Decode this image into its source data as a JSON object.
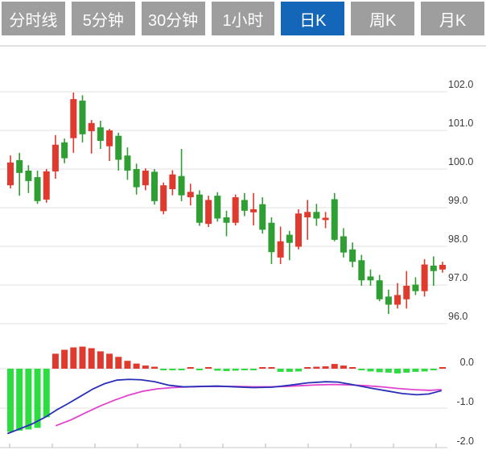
{
  "toolbar": {
    "tabs": [
      {
        "label": "分时线",
        "active": false
      },
      {
        "label": "5分钟",
        "active": false
      },
      {
        "label": "30分钟",
        "active": false
      },
      {
        "label": "1小时",
        "active": false
      },
      {
        "label": "日K",
        "active": true
      },
      {
        "label": "周K",
        "active": false
      },
      {
        "label": "月K",
        "active": false
      }
    ]
  },
  "colors": {
    "tab_bg": "#9e9e9e",
    "tab_active_bg": "#1467b8",
    "tab_text": "#ffffff",
    "up_red": "#e0392e",
    "down_green": "#2f9e33",
    "hist_green": "#2edc41",
    "dif_blue": "#2a2fb8",
    "dea_magenta": "#e243ce",
    "grid": "#e2e2e2",
    "border": "#cfcfcf",
    "axis_label": "#3c3c3c"
  },
  "chart_data": {
    "type": "candlestick_with_macd",
    "title": "Daily K-line (日K) with MACD",
    "price_axis": {
      "ticks": [
        102.0,
        101.0,
        100.0,
        99.0,
        98.0,
        97.0,
        96.0
      ],
      "tick_labels": [
        "102.0",
        "101.0",
        "100.0",
        "99.0",
        "98.0",
        "97.0",
        "96.0"
      ],
      "range": [
        95.8,
        102.2
      ]
    },
    "candles": [
      {
        "o": 99.58,
        "h": 100.35,
        "l": 99.5,
        "c": 100.17
      },
      {
        "o": 100.23,
        "h": 100.42,
        "l": 99.31,
        "c": 99.9
      },
      {
        "o": 99.96,
        "h": 100.1,
        "l": 99.38,
        "c": 99.69
      },
      {
        "o": 99.79,
        "h": 99.96,
        "l": 99.1,
        "c": 99.17
      },
      {
        "o": 99.21,
        "h": 100.0,
        "l": 99.13,
        "c": 99.94
      },
      {
        "o": 99.94,
        "h": 100.88,
        "l": 99.75,
        "c": 100.63
      },
      {
        "o": 100.69,
        "h": 100.79,
        "l": 100.15,
        "c": 100.28
      },
      {
        "o": 100.8,
        "h": 101.98,
        "l": 100.42,
        "c": 101.81
      },
      {
        "o": 101.77,
        "h": 101.91,
        "l": 100.69,
        "c": 100.9
      },
      {
        "o": 100.98,
        "h": 101.27,
        "l": 100.4,
        "c": 101.19
      },
      {
        "o": 101.08,
        "h": 101.25,
        "l": 100.52,
        "c": 100.73
      },
      {
        "o": 100.59,
        "h": 101.04,
        "l": 100.21,
        "c": 101.0
      },
      {
        "o": 100.86,
        "h": 100.94,
        "l": 99.96,
        "c": 100.24
      },
      {
        "o": 100.35,
        "h": 100.56,
        "l": 99.72,
        "c": 99.96
      },
      {
        "o": 100.0,
        "h": 100.14,
        "l": 99.34,
        "c": 99.53
      },
      {
        "o": 99.58,
        "h": 100.02,
        "l": 99.45,
        "c": 99.96
      },
      {
        "o": 99.93,
        "h": 100.0,
        "l": 99.08,
        "c": 99.17
      },
      {
        "o": 98.91,
        "h": 99.65,
        "l": 98.83,
        "c": 99.58
      },
      {
        "o": 99.48,
        "h": 99.97,
        "l": 99.32,
        "c": 99.86
      },
      {
        "o": 99.82,
        "h": 100.52,
        "l": 99.17,
        "c": 99.32
      },
      {
        "o": 99.27,
        "h": 99.62,
        "l": 99.06,
        "c": 99.41
      },
      {
        "o": 99.34,
        "h": 99.45,
        "l": 98.53,
        "c": 98.61
      },
      {
        "o": 98.58,
        "h": 99.31,
        "l": 98.5,
        "c": 99.2
      },
      {
        "o": 99.31,
        "h": 99.4,
        "l": 98.64,
        "c": 98.72
      },
      {
        "o": 98.75,
        "h": 98.92,
        "l": 98.26,
        "c": 98.61
      },
      {
        "o": 98.61,
        "h": 99.34,
        "l": 98.54,
        "c": 99.27
      },
      {
        "o": 99.2,
        "h": 99.38,
        "l": 98.78,
        "c": 98.92
      },
      {
        "o": 98.88,
        "h": 99.38,
        "l": 98.54,
        "c": 98.96
      },
      {
        "o": 99.09,
        "h": 99.27,
        "l": 98.33,
        "c": 98.43
      },
      {
        "o": 98.61,
        "h": 98.75,
        "l": 97.54,
        "c": 97.85
      },
      {
        "o": 97.71,
        "h": 98.51,
        "l": 97.54,
        "c": 98.13
      },
      {
        "o": 98.3,
        "h": 98.4,
        "l": 97.64,
        "c": 98.09
      },
      {
        "o": 97.99,
        "h": 98.96,
        "l": 97.92,
        "c": 98.85
      },
      {
        "o": 98.75,
        "h": 99.2,
        "l": 98.17,
        "c": 98.89
      },
      {
        "o": 98.89,
        "h": 99.1,
        "l": 98.53,
        "c": 98.72
      },
      {
        "o": 98.68,
        "h": 98.89,
        "l": 98.47,
        "c": 98.74
      },
      {
        "o": 99.22,
        "h": 99.38,
        "l": 98.13,
        "c": 98.17
      },
      {
        "o": 98.26,
        "h": 98.47,
        "l": 97.71,
        "c": 97.84
      },
      {
        "o": 97.92,
        "h": 98.1,
        "l": 97.46,
        "c": 97.6
      },
      {
        "o": 97.64,
        "h": 97.78,
        "l": 96.98,
        "c": 97.12
      },
      {
        "o": 97.22,
        "h": 97.4,
        "l": 96.98,
        "c": 97.12
      },
      {
        "o": 97.12,
        "h": 97.26,
        "l": 96.58,
        "c": 96.63
      },
      {
        "o": 96.7,
        "h": 96.88,
        "l": 96.25,
        "c": 96.49
      },
      {
        "o": 96.49,
        "h": 97.05,
        "l": 96.39,
        "c": 96.74
      },
      {
        "o": 96.63,
        "h": 97.36,
        "l": 96.39,
        "c": 96.98
      },
      {
        "o": 97.01,
        "h": 97.2,
        "l": 96.74,
        "c": 96.84
      },
      {
        "o": 96.84,
        "h": 97.67,
        "l": 96.7,
        "c": 97.53
      },
      {
        "o": 97.5,
        "h": 97.74,
        "l": 96.98,
        "c": 97.36
      },
      {
        "o": 97.4,
        "h": 97.6,
        "l": 97.32,
        "c": 97.52
      }
    ],
    "macd": {
      "axis_ticks": [
        0.0,
        -1.0,
        -2.0
      ],
      "axis_tick_labels": [
        "0.0",
        "-1.0",
        "-2.0"
      ],
      "histogram": [
        -1.6,
        -1.57,
        -1.54,
        -1.5,
        -1.23,
        0.38,
        0.48,
        0.54,
        0.56,
        0.52,
        0.44,
        0.38,
        0.3,
        0.2,
        0.13,
        0.08,
        0.05,
        -0.03,
        -0.03,
        -0.04,
        0.03,
        -0.01,
        0.0,
        -0.05,
        -0.06,
        -0.05,
        -0.04,
        -0.01,
        0.03,
        0.0,
        -0.08,
        -0.08,
        -0.07,
        0.01,
        0.05,
        0.06,
        0.12,
        0.08,
        0.03,
        -0.03,
        -0.07,
        -0.09,
        -0.1,
        -0.12,
        -0.1,
        -0.08,
        -0.07,
        -0.04,
        0.03
      ],
      "dif_line": [
        [
          10,
          -1.64
        ],
        [
          25,
          -1.52
        ],
        [
          40,
          -1.4
        ],
        [
          57,
          -1.22
        ],
        [
          70,
          -1.05
        ],
        [
          85,
          -0.88
        ],
        [
          100,
          -0.7
        ],
        [
          115,
          -0.52
        ],
        [
          130,
          -0.38
        ],
        [
          145,
          -0.29
        ],
        [
          160,
          -0.27
        ],
        [
          175,
          -0.28
        ],
        [
          192,
          -0.33
        ],
        [
          210,
          -0.42
        ],
        [
          228,
          -0.46
        ],
        [
          248,
          -0.45
        ],
        [
          270,
          -0.44
        ],
        [
          292,
          -0.46
        ],
        [
          315,
          -0.48
        ],
        [
          338,
          -0.47
        ],
        [
          360,
          -0.42
        ],
        [
          382,
          -0.36
        ],
        [
          405,
          -0.33
        ],
        [
          420,
          -0.34
        ],
        [
          440,
          -0.41
        ],
        [
          460,
          -0.49
        ],
        [
          480,
          -0.56
        ],
        [
          500,
          -0.63
        ],
        [
          518,
          -0.66
        ],
        [
          533,
          -0.64
        ],
        [
          548,
          -0.56
        ]
      ],
      "dea_line": [
        [
          70,
          -1.44
        ],
        [
          88,
          -1.3
        ],
        [
          106,
          -1.12
        ],
        [
          124,
          -0.95
        ],
        [
          142,
          -0.8
        ],
        [
          160,
          -0.67
        ],
        [
          178,
          -0.57
        ],
        [
          196,
          -0.51
        ],
        [
          214,
          -0.48
        ],
        [
          234,
          -0.46
        ],
        [
          254,
          -0.45
        ],
        [
          274,
          -0.45
        ],
        [
          294,
          -0.45
        ],
        [
          314,
          -0.46
        ],
        [
          334,
          -0.46
        ],
        [
          354,
          -0.45
        ],
        [
          374,
          -0.43
        ],
        [
          394,
          -0.41
        ],
        [
          414,
          -0.4
        ],
        [
          434,
          -0.41
        ],
        [
          454,
          -0.43
        ],
        [
          474,
          -0.46
        ],
        [
          494,
          -0.5
        ],
        [
          514,
          -0.53
        ],
        [
          534,
          -0.55
        ],
        [
          548,
          -0.53
        ]
      ]
    }
  }
}
